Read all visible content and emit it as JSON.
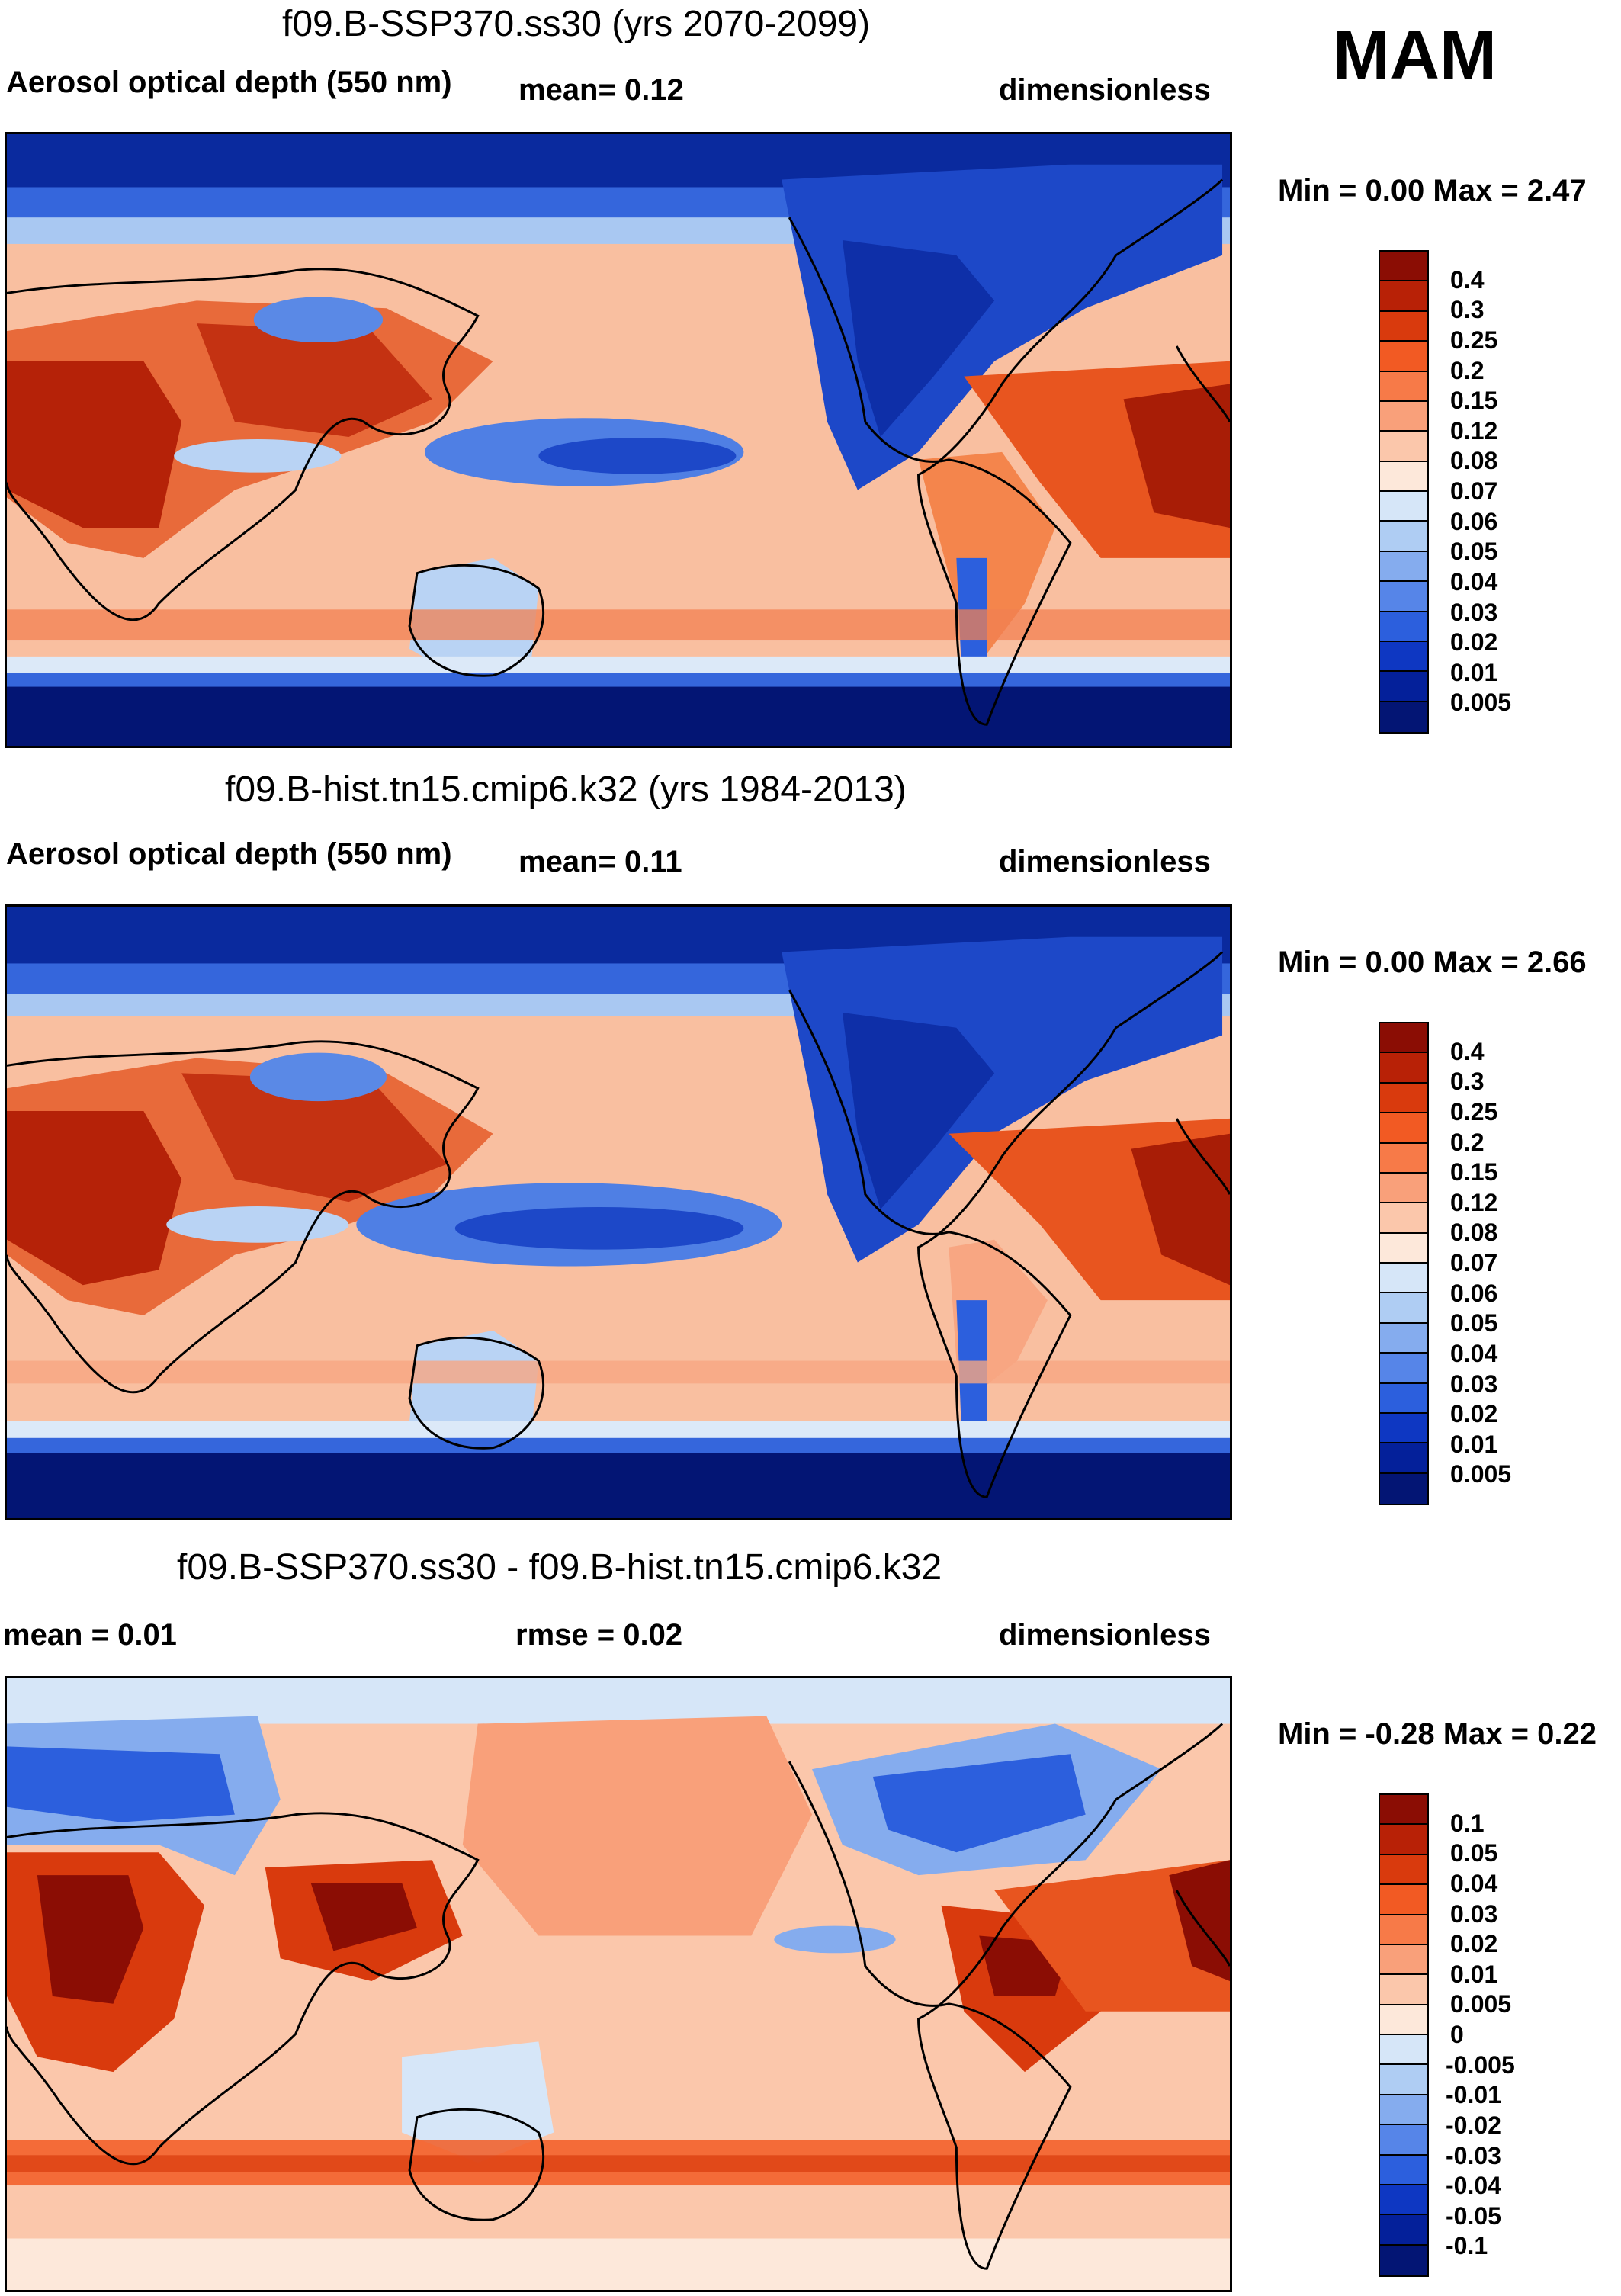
{
  "season": "MAM",
  "panels": [
    {
      "title": "f09.B-SSP370.ss30 (yrs 2070-2099)",
      "left_label": "Aerosol optical depth (550 nm)",
      "mid_label": "mean=   0.12",
      "right_label": "dimensionless",
      "minmax": "Min =   0.00 Max =   2.47",
      "colorbar": {
        "labels": [
          "0.4",
          "0.3",
          "0.25",
          "0.2",
          "0.15",
          "0.12",
          "0.08",
          "0.07",
          "0.06",
          "0.05",
          "0.04",
          "0.03",
          "0.02",
          "0.01",
          "0.005"
        ],
        "colors": [
          "#8b0d04",
          "#b82106",
          "#d93a0d",
          "#f25a23",
          "#f77a48",
          "#f9a07a",
          "#fbc7ab",
          "#fde8da",
          "#d6e6f8",
          "#afcdf3",
          "#85acee",
          "#5685e8",
          "#2c5fdd",
          "#0e37c2",
          "#04209a",
          "#031574"
        ]
      }
    },
    {
      "title": "f09.B-hist.tn15.cmip6.k32 (yrs 1984-2013)",
      "left_label": "Aerosol optical depth (550 nm)",
      "mid_label": "mean=   0.11",
      "right_label": "dimensionless",
      "minmax": "Min =   0.00 Max =   2.66",
      "colorbar": {
        "labels": [
          "0.4",
          "0.3",
          "0.25",
          "0.2",
          "0.15",
          "0.12",
          "0.08",
          "0.07",
          "0.06",
          "0.05",
          "0.04",
          "0.03",
          "0.02",
          "0.01",
          "0.005"
        ],
        "colors": [
          "#8b0d04",
          "#b82106",
          "#d93a0d",
          "#f25a23",
          "#f77a48",
          "#f9a07a",
          "#fbc7ab",
          "#fde8da",
          "#d6e6f8",
          "#afcdf3",
          "#85acee",
          "#5685e8",
          "#2c5fdd",
          "#0e37c2",
          "#04209a",
          "#031574"
        ]
      }
    },
    {
      "title": "f09.B-SSP370.ss30 - f09.B-hist.tn15.cmip6.k32",
      "left_label": "mean =   0.01",
      "mid_label": "rmse =   0.02",
      "right_label": "dimensionless",
      "minmax": "Min =  -0.28 Max =   0.22",
      "colorbar": {
        "labels": [
          "0.1",
          "0.05",
          "0.04",
          "0.03",
          "0.02",
          "0.01",
          "0.005",
          "0",
          "-0.005",
          "-0.01",
          "-0.02",
          "-0.03",
          "-0.04",
          "-0.05",
          "-0.1"
        ],
        "colors": [
          "#8b0d04",
          "#b82106",
          "#d93a0d",
          "#f25a23",
          "#f77a48",
          "#f9a07a",
          "#fbc7ab",
          "#fde8da",
          "#d6e6f8",
          "#afcdf3",
          "#85acee",
          "#5685e8",
          "#2c5fdd",
          "#0e37c2",
          "#04209a",
          "#031574"
        ]
      }
    }
  ]
}
